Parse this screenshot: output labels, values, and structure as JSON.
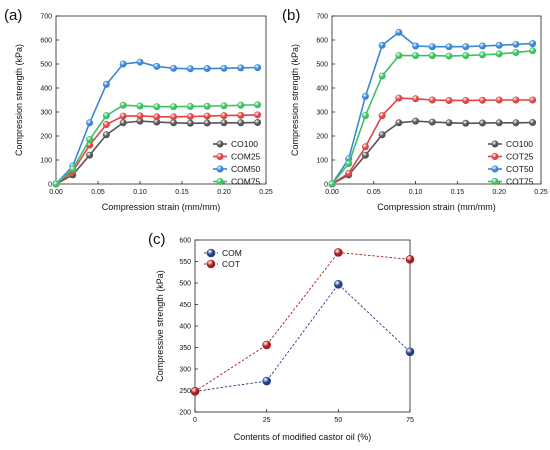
{
  "chart_data": [
    {
      "panel_label": "(a)",
      "type": "line",
      "xlabel": "Compression strain (mm/mm)",
      "ylabel": "Compression strength (kPa)",
      "xlim": [
        0.0,
        0.25
      ],
      "ylim": [
        0,
        700
      ],
      "xticks": [
        "0.00",
        "0.05",
        "0.10",
        "0.15",
        "0.20",
        "0.25"
      ],
      "yticks": [
        "0",
        "100",
        "200",
        "300",
        "400",
        "500",
        "600",
        "700"
      ],
      "legend_position": "bottom-right",
      "series": [
        {
          "name": "CO100",
          "color": "#555555",
          "x": [
            0.0,
            0.02,
            0.04,
            0.06,
            0.08,
            0.1,
            0.12,
            0.14,
            0.16,
            0.18,
            0.2,
            0.22,
            0.24
          ],
          "y": [
            0,
            38,
            120,
            205,
            255,
            262,
            258,
            255,
            253,
            254,
            255,
            255,
            256
          ]
        },
        {
          "name": "COM25",
          "color": "#e04444",
          "x": [
            0.0,
            0.02,
            0.04,
            0.06,
            0.08,
            0.1,
            0.12,
            0.14,
            0.16,
            0.18,
            0.2,
            0.22,
            0.24
          ],
          "y": [
            0,
            52,
            162,
            248,
            283,
            284,
            280,
            280,
            281,
            283,
            285,
            286,
            288
          ]
        },
        {
          "name": "COM50",
          "color": "#3a86d8",
          "x": [
            0.0,
            0.02,
            0.04,
            0.06,
            0.08,
            0.1,
            0.12,
            0.14,
            0.16,
            0.18,
            0.2,
            0.22,
            0.24
          ],
          "y": [
            0,
            75,
            255,
            415,
            500,
            508,
            490,
            482,
            480,
            481,
            482,
            484,
            485
          ]
        },
        {
          "name": "COM75",
          "color": "#3cc060",
          "x": [
            0.0,
            0.02,
            0.04,
            0.06,
            0.08,
            0.1,
            0.12,
            0.14,
            0.16,
            0.18,
            0.2,
            0.22,
            0.24
          ],
          "y": [
            0,
            62,
            185,
            285,
            328,
            325,
            322,
            322,
            323,
            324,
            326,
            328,
            330
          ]
        }
      ]
    },
    {
      "panel_label": "(b)",
      "type": "line",
      "xlabel": "Compression strain (mm/mm)",
      "ylabel": "Compression strength (kPa)",
      "xlim": [
        0.0,
        0.25
      ],
      "ylim": [
        0,
        700
      ],
      "xticks": [
        "0.00",
        "0.05",
        "0.10",
        "0.15",
        "0.20",
        "0.25"
      ],
      "yticks": [
        "0",
        "100",
        "200",
        "300",
        "400",
        "500",
        "600",
        "700"
      ],
      "legend_position": "bottom-right",
      "series": [
        {
          "name": "CO100",
          "color": "#555555",
          "x": [
            0.0,
            0.02,
            0.04,
            0.06,
            0.08,
            0.1,
            0.12,
            0.14,
            0.16,
            0.18,
            0.2,
            0.22,
            0.24
          ],
          "y": [
            0,
            38,
            120,
            205,
            255,
            262,
            258,
            255,
            253,
            254,
            255,
            255,
            256
          ]
        },
        {
          "name": "COT25",
          "color": "#e04444",
          "x": [
            0.0,
            0.02,
            0.04,
            0.06,
            0.08,
            0.1,
            0.12,
            0.14,
            0.16,
            0.18,
            0.2,
            0.22,
            0.24
          ],
          "y": [
            0,
            45,
            155,
            285,
            358,
            355,
            350,
            348,
            348,
            349,
            350,
            350,
            350
          ]
        },
        {
          "name": "COT50",
          "color": "#3a86d8",
          "x": [
            0.0,
            0.02,
            0.04,
            0.06,
            0.08,
            0.1,
            0.12,
            0.14,
            0.16,
            0.18,
            0.2,
            0.22,
            0.24
          ],
          "y": [
            0,
            105,
            365,
            578,
            632,
            575,
            572,
            572,
            572,
            575,
            578,
            582,
            585
          ]
        },
        {
          "name": "COT75",
          "color": "#3cc060",
          "x": [
            0.0,
            0.02,
            0.04,
            0.06,
            0.08,
            0.1,
            0.12,
            0.14,
            0.16,
            0.18,
            0.2,
            0.22,
            0.24
          ],
          "y": [
            0,
            85,
            285,
            450,
            535,
            535,
            535,
            533,
            535,
            538,
            542,
            548,
            555
          ]
        }
      ]
    },
    {
      "panel_label": "(c)",
      "type": "line",
      "xlabel": "Contents of modified castor oil (%)",
      "ylabel": "Compressive strength (kPa)",
      "xlim": [
        0,
        75
      ],
      "ylim": [
        200,
        600
      ],
      "xticks": [
        "0",
        "25",
        "50",
        "75"
      ],
      "yticks": [
        "200",
        "250",
        "300",
        "350",
        "400",
        "450",
        "500",
        "550",
        "600"
      ],
      "legend_position": "top-left",
      "series": [
        {
          "name": "COM",
          "color": "#1f3f8a",
          "x": [
            0,
            25,
            50,
            75
          ],
          "y": [
            248,
            272,
            497,
            340
          ]
        },
        {
          "name": "COT",
          "color": "#a81c1c",
          "x": [
            0,
            25,
            50,
            75
          ],
          "y": [
            248,
            356,
            571,
            555
          ]
        }
      ]
    }
  ]
}
